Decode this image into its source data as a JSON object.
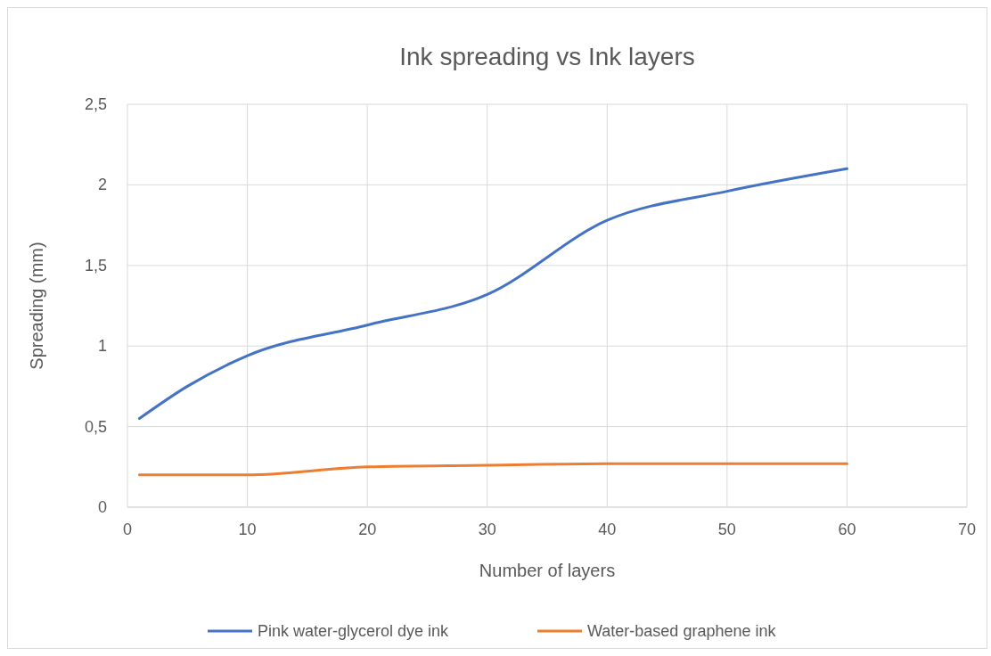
{
  "chart_data": {
    "type": "line",
    "title": "Ink spreading vs Ink layers",
    "xlabel": "Number of layers",
    "ylabel": "Spreading (mm)",
    "x": [
      1,
      5,
      10,
      20,
      30,
      40,
      50,
      60
    ],
    "series": [
      {
        "name": "Pink water-glycerol dye ink",
        "color": "#4472c4",
        "values": [
          0.55,
          0.75,
          0.94,
          1.13,
          1.32,
          1.78,
          1.96,
          2.1
        ]
      },
      {
        "name": "Water-based graphene ink",
        "color": "#ed7d31",
        "values": [
          0.2,
          0.2,
          0.2,
          0.25,
          0.26,
          0.27,
          0.27,
          0.27
        ]
      }
    ],
    "xlim": [
      0,
      70
    ],
    "xticks": [
      0,
      10,
      20,
      30,
      40,
      50,
      60,
      70
    ],
    "ylim": [
      0,
      2.5
    ],
    "yticks": [
      0,
      {
        "value": 0.5,
        "label": "0,5"
      },
      1,
      {
        "value": 1.5,
        "label": "1,5"
      },
      2,
      {
        "value": 2.5,
        "label": "2,5"
      }
    ],
    "grid": true,
    "legend": "bottom",
    "marker": "none",
    "line_style": "solid"
  }
}
